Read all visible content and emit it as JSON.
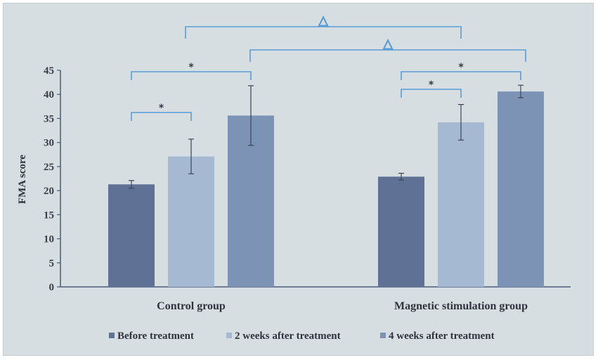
{
  "chart_data": {
    "type": "bar",
    "title": "",
    "xlabel": "",
    "ylabel": "FMA score",
    "ylim": [
      0,
      45
    ],
    "yticks": [
      "0",
      "5",
      "10",
      "15",
      "20",
      "25",
      "30",
      "35",
      "40",
      "45"
    ],
    "categories": [
      "Control group",
      "Magnetic stimulation group"
    ],
    "series": [
      {
        "name": "Before treatment",
        "color": "#5f7194",
        "values": [
          21.3,
          22.9
        ],
        "errors": [
          0.8,
          0.7
        ]
      },
      {
        "name": "2 weeks after treatment",
        "color": "#a6b9d2",
        "values": [
          27.1,
          34.2
        ],
        "errors": [
          3.6,
          3.7
        ]
      },
      {
        "name": "4 weeks after treatment",
        "color": "#7d93b6",
        "values": [
          35.6,
          40.6
        ],
        "errors": [
          6.2,
          1.3
        ]
      }
    ],
    "legend_position": "bottom",
    "grid": false,
    "significance": [
      {
        "symbol": "*",
        "group": 0,
        "from_series": 0,
        "to_series": 1
      },
      {
        "symbol": "*",
        "group": 0,
        "from_series": 0,
        "to_series": 2
      },
      {
        "symbol": "*",
        "group": 1,
        "from_series": 0,
        "to_series": 1
      },
      {
        "symbol": "*",
        "group": 1,
        "from_series": 0,
        "to_series": 2
      },
      {
        "symbol": "△",
        "from_group": 0,
        "to_group": 1,
        "series": 1
      },
      {
        "symbol": "△",
        "from_group": 0,
        "to_group": 1,
        "series": 2
      }
    ],
    "bracket_color": "#5b9bd5"
  }
}
